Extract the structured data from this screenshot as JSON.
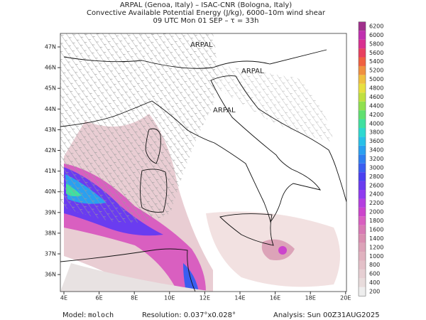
{
  "header": {
    "lines": [
      "ARPAL (Genoa, Italy)  –  ISAC-CNR (Bologna, Italy)",
      "Convective Available Potential Energy (J/kg), 6000–10m wind shear",
      "09 UTC Mon 01 SEP  –  τ = 33h"
    ]
  },
  "map": {
    "lon_ticks": [
      {
        "value": 4,
        "label": "4E"
      },
      {
        "value": 6,
        "label": "6E"
      },
      {
        "value": 8,
        "label": "8E"
      },
      {
        "value": 10,
        "label": "10E"
      },
      {
        "value": 12,
        "label": "12E"
      },
      {
        "value": 14,
        "label": "14E"
      },
      {
        "value": 16,
        "label": "16E"
      },
      {
        "value": 18,
        "label": "18E"
      },
      {
        "value": 20,
        "label": "20E"
      }
    ],
    "lat_ticks": [
      {
        "value": 47,
        "label": "47N"
      },
      {
        "value": 46,
        "label": "46N"
      },
      {
        "value": 45,
        "label": "45N"
      },
      {
        "value": 44,
        "label": "44N"
      },
      {
        "value": 43,
        "label": "43N"
      },
      {
        "value": 42,
        "label": "42N"
      },
      {
        "value": 41,
        "label": "41N"
      },
      {
        "value": 40,
        "label": "40N"
      },
      {
        "value": 39,
        "label": "39N"
      },
      {
        "value": 38,
        "label": "38N"
      },
      {
        "value": 37,
        "label": "37N"
      },
      {
        "value": 36,
        "label": "36N"
      }
    ],
    "watermark": "ARPAL"
  },
  "colorbar": {
    "levels": [
      200,
      400,
      600,
      800,
      1000,
      1200,
      1400,
      1600,
      1800,
      2000,
      2200,
      2400,
      2600,
      2800,
      3000,
      3200,
      3400,
      3600,
      3800,
      4000,
      4200,
      4400,
      4600,
      4800,
      5000,
      5200,
      5400,
      5600,
      5800,
      6000,
      6200
    ],
    "colors": [
      "#eeeeee",
      "#e8dcdc",
      "#e6cfd3",
      "#e3c0c8",
      "#e0b2bf",
      "#dca3b8",
      "#d98fb0",
      "#d87ab4",
      "#d95fc0",
      "#cc44cc",
      "#b43fe0",
      "#8f3cf0",
      "#6a3cf0",
      "#4a40f0",
      "#3a5ef0",
      "#2f7ff0",
      "#2aa0f0",
      "#28c0e8",
      "#2ed8d0",
      "#40e0a0",
      "#60e070",
      "#90e050",
      "#c0e040",
      "#e8e040",
      "#f0c040",
      "#f09040",
      "#f06040",
      "#e84060",
      "#d83090",
      "#c030b0",
      "#a0308c"
    ]
  },
  "footer": {
    "model_label": "Model:",
    "model": "moloch",
    "resolution": "Resolution: 0.037°x0.028°",
    "analysis": "Analysis: Sun 00Z31AUG2025"
  }
}
